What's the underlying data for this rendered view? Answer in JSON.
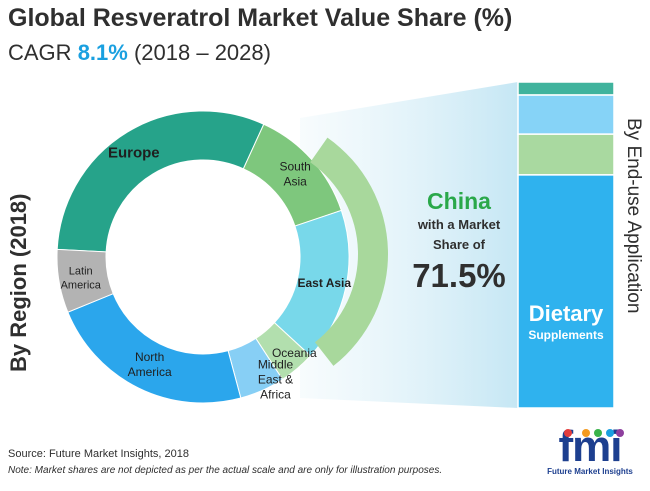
{
  "header": {
    "title": "Global Resveratrol Market Value Share (%)",
    "cagr_prefix": "CAGR",
    "cagr_value": "8.1%",
    "cagr_period": "(2018 – 2028)"
  },
  "left_axis_label": "By Region (2018)",
  "right_axis_label": "By End-use Application",
  "chart_data": {
    "type": "donut",
    "note": "",
    "series": [
      {
        "label": "Europe",
        "value": 31,
        "color": "#26a38a"
      },
      {
        "label": "South Asia",
        "value": 13,
        "color": "#7ec77d"
      },
      {
        "label": "East Asia",
        "value": 17,
        "color": "#78d8ea"
      },
      {
        "label": "Oceania",
        "value": 4,
        "color": "#b2dfae"
      },
      {
        "label": "Middle East & Africa",
        "value": 5,
        "color": "#87cff5"
      },
      {
        "label": "North America",
        "value": 23,
        "color": "#2ba6ec"
      },
      {
        "label": "Latin America",
        "value": 7,
        "color": "#b3b3b3"
      }
    ],
    "stacked_bar": [
      {
        "label": "",
        "value": 4,
        "color": "#40b39d"
      },
      {
        "label": "",
        "value": 12,
        "color": "#86d3f7"
      },
      {
        "label": "",
        "value": 12.5,
        "color": "#a9d9a0"
      },
      {
        "label": "Dietary Supplements",
        "value": 71.5,
        "color": "#2fb2ee"
      }
    ]
  },
  "callout": {
    "country": "China",
    "desc_line1": "with a Market",
    "desc_line2": "Share of",
    "value": "71.5%",
    "arc_color": "#a8d89c"
  },
  "bar_label": {
    "line1": "Dietary",
    "line2": "Supplements"
  },
  "footer": {
    "source": "Source: Future Market Insights, 2018",
    "note": "Note: Market shares are not depicted as per the actual scale and are only for illustration purposes."
  },
  "logo": {
    "word": "fmi",
    "sub": "Future Market Insights",
    "colors": [
      "#e43d3d",
      "#f39a1f",
      "#39b34a",
      "#1aa0e0",
      "#8e3f9e"
    ]
  }
}
